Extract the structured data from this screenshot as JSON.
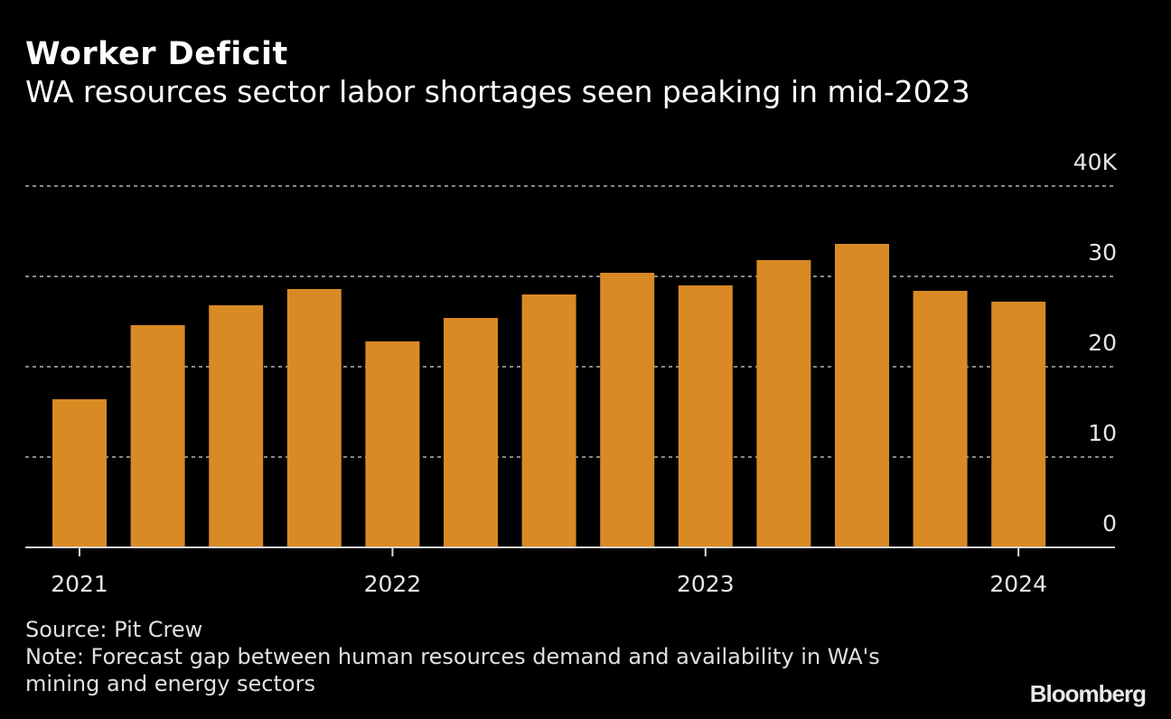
{
  "title": "Worker Deficit",
  "subtitle": "WA resources sector labor shortages seen peaking in mid-2023",
  "source": "Source: Pit Crew",
  "note": "Note: Forecast gap between human resources demand and availability in WA's mining and energy sectors",
  "brand": "Bloomberg",
  "colors": {
    "bar": "#d98a24",
    "grid": "#888888",
    "axis": "#d9d9d9",
    "background": "#000000"
  },
  "chart_data": {
    "type": "bar",
    "title": "Worker Deficit",
    "subtitle": "WA resources sector labor shortages seen peaking in mid-2023",
    "xlabel": "",
    "ylabel": "",
    "categories": [
      "Q1 2021",
      "Q2 2021",
      "Q3 2021",
      "Q4 2021",
      "Q1 2022",
      "Q2 2022",
      "Q3 2022",
      "Q4 2022",
      "Q1 2023",
      "Q2 2023",
      "Q3 2023",
      "Q4 2023",
      "Q1 2024"
    ],
    "values": [
      16400,
      24600,
      26800,
      28600,
      22800,
      25400,
      28000,
      30400,
      29000,
      31800,
      33600,
      28400,
      27200
    ],
    "ylim": [
      0,
      40000
    ],
    "yticks": [
      0,
      10000,
      20000,
      30000,
      40000
    ],
    "ytick_labels": [
      "0",
      "10",
      "20",
      "30",
      "40K"
    ],
    "xtick_labels": [
      {
        "label": "2021",
        "index": 0
      },
      {
        "label": "2022",
        "index": 4
      },
      {
        "label": "2023",
        "index": 8
      },
      {
        "label": "2024",
        "index": 12
      }
    ],
    "grid": true,
    "y_axis_side": "right",
    "legend": "none"
  }
}
